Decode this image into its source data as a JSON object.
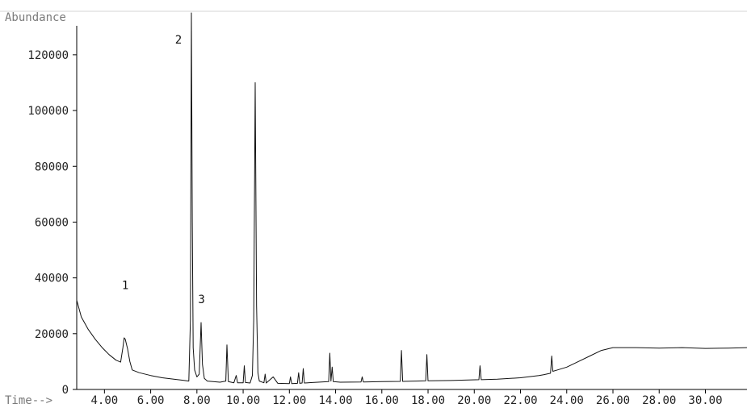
{
  "chart_data": {
    "type": "line",
    "ylabel": "Abundance",
    "xlabel": "Time-->",
    "xlim": [
      2.8,
      31.8
    ],
    "ylim": [
      0,
      135000
    ],
    "x_ticks": [
      "4.00",
      "6.00",
      "8.00",
      "10.00",
      "12.00",
      "14.00",
      "16.00",
      "18.00",
      "20.00",
      "22.00",
      "24.00",
      "26.00",
      "28.00",
      "30.00"
    ],
    "x_tick_values": [
      4,
      6,
      8,
      10,
      12,
      14,
      16,
      18,
      20,
      22,
      24,
      26,
      28,
      30
    ],
    "y_ticks": [
      "0",
      "20000",
      "40000",
      "60000",
      "80000",
      "100000",
      "120000"
    ],
    "y_tick_values": [
      0,
      20000,
      40000,
      60000,
      80000,
      100000,
      120000
    ],
    "grid": false,
    "series": [
      {
        "x": [
          2.8,
          3.0,
          3.3,
          3.6,
          3.9,
          4.2,
          4.5,
          4.7,
          4.8,
          4.85,
          4.9,
          5.0,
          5.1,
          5.2,
          5.5,
          6.0,
          6.5,
          7.0,
          7.4,
          7.65,
          7.72,
          7.76,
          7.8,
          7.84,
          7.9,
          8.0,
          8.1,
          8.18,
          8.24,
          8.32,
          8.45,
          9.0,
          9.25,
          9.3,
          9.36,
          9.6,
          9.7,
          9.76,
          10.0,
          10.05,
          10.1,
          10.3,
          10.4,
          10.46,
          10.52,
          10.58,
          10.64,
          10.7,
          10.9,
          10.95,
          11.0,
          11.3,
          11.5,
          12.0,
          12.05,
          12.1,
          12.35,
          12.4,
          12.45,
          12.55,
          12.6,
          12.65,
          13.0,
          13.7,
          13.75,
          13.8,
          13.85,
          13.9,
          14.2,
          15.1,
          15.15,
          15.2,
          16.0,
          16.8,
          16.85,
          16.9,
          17.5,
          17.9,
          17.95,
          18.0,
          19.0,
          20.2,
          20.25,
          20.3,
          21.0,
          22.0,
          22.8,
          23.0,
          23.3,
          23.35,
          23.4,
          23.6,
          24.0,
          24.5,
          25.0,
          25.5,
          26.0,
          27.0,
          28.0,
          29.0,
          30.0,
          31.0,
          31.8
        ],
        "y": [
          32000,
          26000,
          21500,
          18000,
          15000,
          12500,
          10500,
          9800,
          15000,
          18500,
          18000,
          14500,
          10000,
          7000,
          6000,
          5000,
          4200,
          3700,
          3300,
          3000,
          25000,
          135000,
          60000,
          15000,
          7000,
          4500,
          5500,
          24000,
          9000,
          4000,
          3000,
          2600,
          3000,
          16000,
          2800,
          2400,
          5000,
          2400,
          2400,
          8500,
          2500,
          2300,
          5000,
          25000,
          110000,
          30000,
          6000,
          3000,
          2400,
          5500,
          2300,
          4500,
          2200,
          2100,
          4500,
          2100,
          2200,
          6000,
          2200,
          2300,
          7500,
          2300,
          2500,
          2800,
          13000,
          3000,
          8000,
          2800,
          2600,
          2700,
          4500,
          2700,
          2800,
          2900,
          14000,
          2900,
          3000,
          3100,
          12500,
          3100,
          3200,
          3500,
          8500,
          3500,
          3700,
          4200,
          5000,
          5300,
          5800,
          12000,
          6500,
          7000,
          8000,
          10000,
          12000,
          14000,
          15000,
          15000,
          14800,
          15000,
          14700,
          14800,
          15000
        ]
      }
    ],
    "annotations": [
      {
        "text": "1",
        "x": 4.9,
        "y": 36000
      },
      {
        "text": "2",
        "x": 7.2,
        "y": 124000
      },
      {
        "text": "3",
        "x": 8.2,
        "y": 31000
      }
    ]
  }
}
